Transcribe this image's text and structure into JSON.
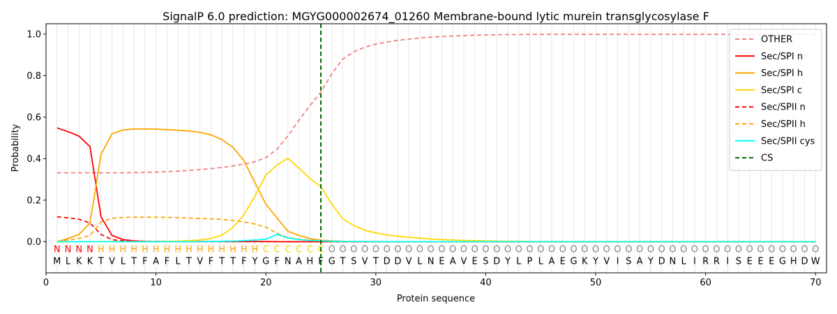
{
  "chart_data": {
    "type": "line",
    "title": "SignalP 6.0 prediction: MGYG000002674_01260 Membrane-bound lytic murein transglycosylase F",
    "xlabel": "Protein sequence",
    "ylabel": "Probability",
    "xlim": [
      0,
      71
    ],
    "ylim": [
      -0.15,
      1.05
    ],
    "xticks": [
      0,
      10,
      20,
      30,
      40,
      50,
      60,
      70
    ],
    "yticks": [
      0.0,
      0.2,
      0.4,
      0.6,
      0.8,
      1.0
    ],
    "xtick_labels": [
      "0",
      "10",
      "20",
      "30",
      "40",
      "50",
      "60",
      "70"
    ],
    "ytick_labels": [
      "0.0",
      "0.2",
      "0.4",
      "0.6",
      "0.8",
      "1.0"
    ],
    "grid": "vertical lines at each sequence position",
    "legend_position": "top-right",
    "sequence": [
      "M",
      "L",
      "K",
      "K",
      "T",
      "V",
      "L",
      "T",
      "F",
      "A",
      "F",
      "L",
      "T",
      "V",
      "F",
      "T",
      "T",
      "F",
      "Y",
      "G",
      "F",
      "N",
      "A",
      "H",
      "F",
      "G",
      "T",
      "S",
      "V",
      "T",
      "D",
      "D",
      "V",
      "L",
      "N",
      "E",
      "A",
      "V",
      "E",
      "S",
      "D",
      "Y",
      "L",
      "P",
      "L",
      "A",
      "E",
      "G",
      "K",
      "Y",
      "V",
      "I",
      "S",
      "A",
      "Y",
      "D",
      "N",
      "L",
      "I",
      "R",
      "R",
      "I",
      "S",
      "E",
      "E",
      "E",
      "G",
      "H",
      "D",
      "W"
    ],
    "region_labels": [
      "N",
      "N",
      "N",
      "N",
      "H",
      "H",
      "H",
      "H",
      "H",
      "H",
      "H",
      "H",
      "H",
      "H",
      "H",
      "H",
      "H",
      "H",
      "H",
      "C",
      "C",
      "C",
      "C",
      "C",
      "C",
      "O",
      "O",
      "O",
      "O",
      "O",
      "O",
      "O",
      "O",
      "O",
      "O",
      "O",
      "O",
      "O",
      "O",
      "O",
      "O",
      "O",
      "O",
      "O",
      "O",
      "O",
      "O",
      "O",
      "O",
      "O",
      "O",
      "O",
      "O",
      "O",
      "O",
      "O",
      "O",
      "O",
      "O",
      "O",
      "O",
      "O",
      "O",
      "O",
      "O",
      "O",
      "O",
      "O",
      "O",
      "O"
    ],
    "region_colors": {
      "N": "#ff0000",
      "H": "#ffa500",
      "C": "#ffd700",
      "O": "#808080"
    },
    "cleavage_site": 25,
    "series": [
      {
        "name": "OTHER",
        "color": "#f08080",
        "dash": "dashed",
        "values": [
          0.332,
          0.332,
          0.332,
          0.332,
          0.332,
          0.332,
          0.332,
          0.333,
          0.334,
          0.335,
          0.337,
          0.34,
          0.343,
          0.347,
          0.352,
          0.358,
          0.365,
          0.374,
          0.385,
          0.405,
          0.445,
          0.51,
          0.585,
          0.655,
          0.72,
          0.81,
          0.88,
          0.915,
          0.937,
          0.952,
          0.962,
          0.97,
          0.976,
          0.981,
          0.985,
          0.988,
          0.991,
          0.993,
          0.995,
          0.996,
          0.997,
          0.998,
          0.998,
          0.999,
          0.999,
          0.999,
          0.999,
          0.999,
          0.999,
          0.999,
          0.999,
          0.999,
          0.999,
          0.999,
          0.999,
          0.999,
          0.999,
          0.999,
          0.999,
          0.999,
          0.999,
          0.999,
          0.999,
          0.999,
          0.999,
          0.999,
          0.999,
          0.999,
          0.999,
          0.999
        ]
      },
      {
        "name": "Sec/SPI n",
        "color": "#ff0000",
        "dash": "solid",
        "values": [
          0.548,
          0.53,
          0.508,
          0.458,
          0.12,
          0.03,
          0.01,
          0.004,
          0.002,
          0.001,
          0.001,
          0.001,
          0.001,
          0.001,
          0.001,
          0.001,
          0.001,
          0.001,
          0.001,
          0.001,
          0,
          0,
          0,
          0,
          0,
          0,
          0,
          0,
          0,
          0,
          0,
          0,
          0,
          0,
          0,
          0,
          0,
          0,
          0,
          0,
          0,
          0,
          0,
          0,
          0,
          0,
          0,
          0,
          0,
          0,
          0,
          0,
          0,
          0,
          0,
          0,
          0,
          0,
          0,
          0,
          0,
          0,
          0,
          0,
          0,
          0,
          0,
          0,
          0,
          0
        ]
      },
      {
        "name": "Sec/SPI h",
        "color": "#ffa500",
        "dash": "solid",
        "values": [
          0.0,
          0.015,
          0.035,
          0.09,
          0.42,
          0.52,
          0.538,
          0.543,
          0.543,
          0.542,
          0.54,
          0.537,
          0.533,
          0.527,
          0.515,
          0.492,
          0.455,
          0.39,
          0.285,
          0.18,
          0.115,
          0.05,
          0.03,
          0.015,
          0.007,
          0.004,
          0.002,
          0.001,
          0.001,
          0.001,
          0,
          0,
          0,
          0,
          0,
          0,
          0,
          0,
          0,
          0,
          0,
          0,
          0,
          0,
          0,
          0,
          0,
          0,
          0,
          0,
          0,
          0,
          0,
          0,
          0,
          0,
          0,
          0,
          0,
          0,
          0,
          0,
          0,
          0,
          0,
          0,
          0,
          0,
          0,
          0
        ]
      },
      {
        "name": "Sec/SPI c",
        "color": "#ffd700",
        "dash": "solid",
        "values": [
          0,
          0,
          0,
          0,
          0.001,
          0.001,
          0.001,
          0.001,
          0.001,
          0.002,
          0.002,
          0.003,
          0.005,
          0.008,
          0.015,
          0.032,
          0.068,
          0.13,
          0.22,
          0.32,
          0.37,
          0.402,
          0.355,
          0.305,
          0.265,
          0.18,
          0.11,
          0.078,
          0.055,
          0.042,
          0.033,
          0.026,
          0.021,
          0.017,
          0.013,
          0.01,
          0.008,
          0.006,
          0.005,
          0.004,
          0.003,
          0.002,
          0.002,
          0.001,
          0.001,
          0.001,
          0.001,
          0.001,
          0.001,
          0.001,
          0.001,
          0.001,
          0.001,
          0.001,
          0.001,
          0.001,
          0.001,
          0.001,
          0.001,
          0.001,
          0.001,
          0.001,
          0.001,
          0.001,
          0.001,
          0.001,
          0.001,
          0.001,
          0.001,
          0.001
        ]
      },
      {
        "name": "Sec/SPII n",
        "color": "#ff0000",
        "dash": "dashed",
        "values": [
          0.12,
          0.115,
          0.108,
          0.09,
          0.035,
          0.01,
          0.004,
          0.002,
          0.001,
          0.001,
          0,
          0,
          0,
          0,
          0,
          0,
          0,
          0,
          0,
          0,
          0,
          0,
          0,
          0,
          0,
          0,
          0,
          0,
          0,
          0,
          0,
          0,
          0,
          0,
          0,
          0,
          0,
          0,
          0,
          0,
          0,
          0,
          0,
          0,
          0,
          0,
          0,
          0,
          0,
          0,
          0,
          0,
          0,
          0,
          0,
          0,
          0,
          0,
          0,
          0,
          0,
          0,
          0,
          0,
          0,
          0,
          0,
          0,
          0,
          0
        ]
      },
      {
        "name": "Sec/SPII h",
        "color": "#ffa500",
        "dash": "dashed",
        "values": [
          0.0,
          0.008,
          0.015,
          0.03,
          0.095,
          0.113,
          0.117,
          0.118,
          0.118,
          0.118,
          0.117,
          0.116,
          0.114,
          0.112,
          0.11,
          0.107,
          0.102,
          0.095,
          0.085,
          0.07,
          0.04,
          0.02,
          0.012,
          0.007,
          0.004,
          0.002,
          0.001,
          0.001,
          0,
          0,
          0,
          0,
          0,
          0,
          0,
          0,
          0,
          0,
          0,
          0,
          0,
          0,
          0,
          0,
          0,
          0,
          0,
          0,
          0,
          0,
          0,
          0,
          0,
          0,
          0,
          0,
          0,
          0,
          0,
          0,
          0,
          0,
          0,
          0,
          0,
          0,
          0,
          0,
          0,
          0
        ]
      },
      {
        "name": "Sec/SPII cys",
        "color": "#00ffff",
        "dash": "solid",
        "values": [
          0,
          0,
          0,
          0,
          0,
          0,
          0,
          0,
          0,
          0,
          0,
          0,
          0,
          0,
          0.001,
          0.002,
          0.003,
          0.005,
          0.008,
          0.012,
          0.035,
          0.018,
          0.01,
          0.006,
          0.004,
          0.002,
          0.001,
          0.001,
          0.001,
          0,
          0,
          0,
          0,
          0,
          0,
          0,
          0,
          0,
          0,
          0,
          0,
          0,
          0,
          0,
          0,
          0,
          0,
          0,
          0,
          0,
          0,
          0,
          0,
          0,
          0,
          0,
          0,
          0,
          0,
          0,
          0,
          0,
          0,
          0,
          0,
          0,
          0,
          0,
          0,
          0
        ]
      },
      {
        "name": "CS",
        "color": "#006400",
        "dash": "dashed",
        "vertical_at": 25
      }
    ]
  }
}
